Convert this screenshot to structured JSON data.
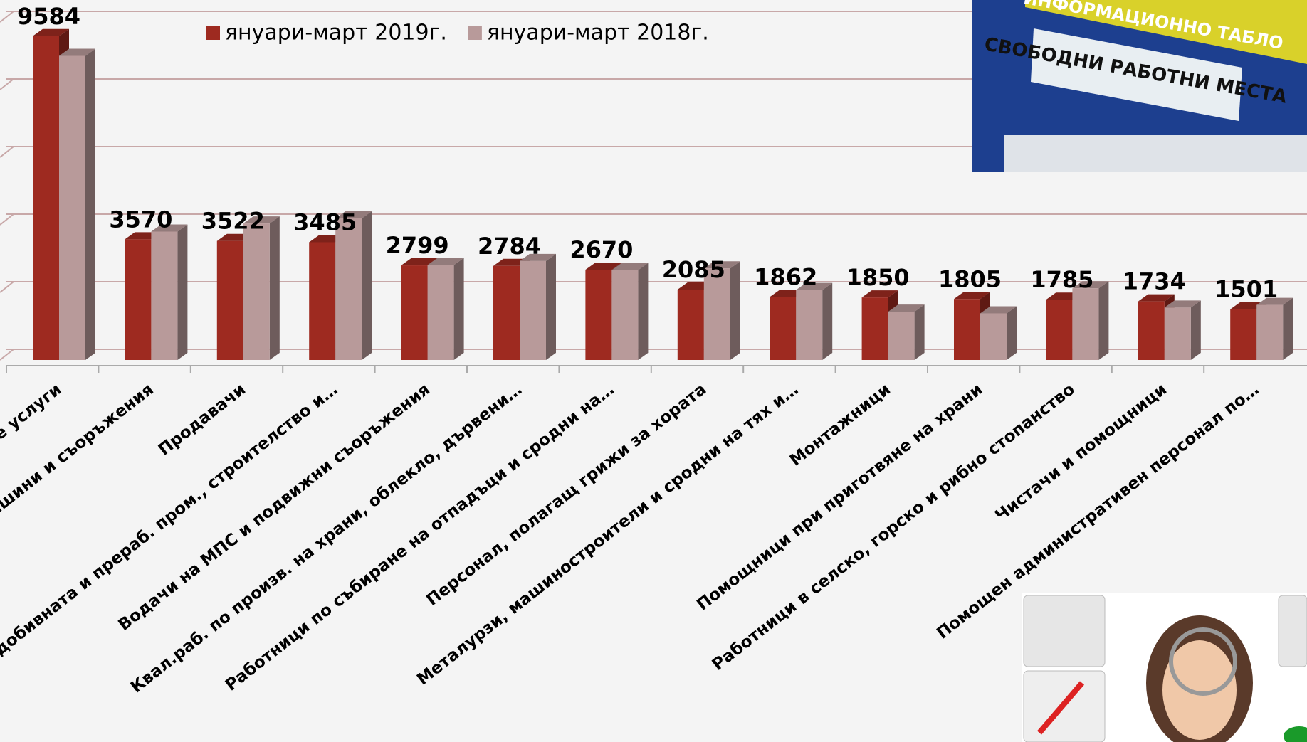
{
  "chart_data": {
    "type": "bar3d",
    "categories": [
      "е услуги",
      "ашини и съоръжения",
      "Продавачи",
      "б. в добивната и прераб. пром., строителство и…",
      "Водачи на МПС и подвижни съоръжения",
      "Квал.раб. по произв. на храни, облекло, дървени…",
      "Работници по събиране на отпадъци и сродни на…",
      "Персонал, полагащ грижи за хората",
      "Металурзи, машиностроители и сродни на тях и…",
      "Монтажници",
      "Помощници при приготвяне на храни",
      "Работници в селско, горско и рибно стопанство",
      "Чистачи и помощници",
      "Помощен административен персонал по…"
    ],
    "series": [
      {
        "name": "януари-март 2019г.",
        "color": "#9e2a20",
        "values": [
          9584,
          3570,
          3522,
          3485,
          2799,
          2784,
          2670,
          2085,
          1862,
          1850,
          1805,
          1785,
          1734,
          1501
        ]
      },
      {
        "name": "януари-март 2018г.",
        "color": "#b89a9a",
        "values": [
          9000,
          3800,
          4040,
          4190,
          2810,
          2930,
          2660,
          2710,
          2070,
          1430,
          1380,
          2120,
          1550,
          1630
        ]
      }
    ],
    "ylim": [
      0,
      10000
    ],
    "yticks": [
      0,
      2000,
      4000,
      6000,
      8000,
      10000
    ],
    "grid": true,
    "legend": "top"
  },
  "photo_text": {
    "board_title": "ИНФОРМАЦИОННО ТАБЛО",
    "board_heading": "СВОБОДНИ РАБОТНИ МЕСТА"
  }
}
